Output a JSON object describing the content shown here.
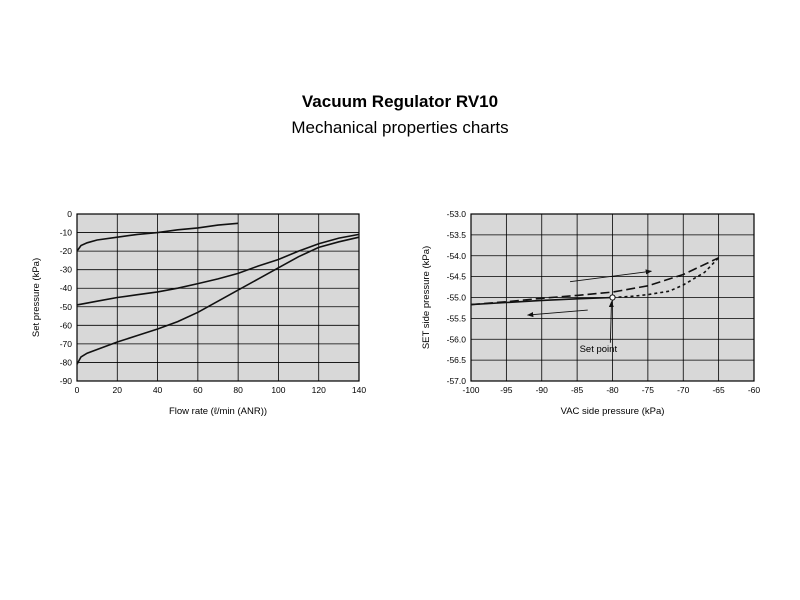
{
  "header": {
    "title": "Vacuum Regulator RV10",
    "subtitle": "Mechanical properties charts"
  },
  "chart_data": [
    {
      "type": "line",
      "xlabel": "Flow rate (ℓ/min (ANR))",
      "ylabel": "Set pressure (kPa)",
      "xlim": [
        0,
        140
      ],
      "ylim": [
        -90,
        0
      ],
      "xticks": [
        0,
        20,
        40,
        60,
        80,
        100,
        120,
        140
      ],
      "yticks": [
        0,
        -10,
        -20,
        -30,
        -40,
        -50,
        -60,
        -70,
        -80,
        -90
      ],
      "grid": true,
      "series": [
        {
          "style": "solid",
          "x": [
            0,
            2,
            5,
            10,
            20,
            30,
            40,
            50,
            60,
            70,
            80
          ],
          "y": [
            -20,
            -17,
            -15.5,
            -14,
            -12.5,
            -11,
            -10,
            -8.5,
            -7.5,
            -6,
            -5
          ]
        },
        {
          "style": "solid",
          "x": [
            0,
            5,
            10,
            20,
            30,
            40,
            50,
            60,
            70,
            80,
            90,
            100,
            110,
            120,
            130,
            140
          ],
          "y": [
            -49,
            -48,
            -47,
            -45,
            -43.5,
            -42,
            -40,
            -37.5,
            -35,
            -32,
            -28,
            -24.5,
            -20,
            -16,
            -13,
            -11
          ]
        },
        {
          "style": "solid",
          "x": [
            0,
            2,
            5,
            10,
            20,
            30,
            40,
            50,
            60,
            70,
            80,
            90,
            100,
            110,
            120,
            130,
            140
          ],
          "y": [
            -81,
            -77,
            -75,
            -73,
            -69,
            -65.5,
            -62,
            -58,
            -53,
            -47,
            -41,
            -35,
            -29,
            -23,
            -18,
            -15,
            -12.5
          ]
        }
      ]
    },
    {
      "type": "line",
      "xlabel": "VAC side pressure (kPa)",
      "ylabel": "SET side pressure (kPa)",
      "xlim": [
        -100,
        -60
      ],
      "ylim": [
        -57.0,
        -53.0
      ],
      "xticks": [
        -100,
        -95,
        -90,
        -85,
        -80,
        -75,
        -70,
        -65,
        -60
      ],
      "yticks": [
        "-53.0",
        "-53.5",
        "-54.0",
        "-54.5",
        "-55.0",
        "-55.5",
        "-56.0",
        "-56.5",
        "-57.0"
      ],
      "grid": true,
      "series": [
        {
          "style": "solid",
          "x": [
            -100,
            -95,
            -90,
            -85,
            -80
          ],
          "y": [
            -55.17,
            -55.12,
            -55.07,
            -55.03,
            -55.0
          ]
        },
        {
          "style": "long-dash",
          "x": [
            -100,
            -95,
            -90,
            -85,
            -80,
            -75,
            -70,
            -65
          ],
          "y": [
            -55.17,
            -55.1,
            -55.02,
            -54.95,
            -54.87,
            -54.72,
            -54.45,
            -54.05
          ]
        },
        {
          "style": "short-dash",
          "x": [
            -80,
            -77,
            -75,
            -72,
            -70,
            -67,
            -65
          ],
          "y": [
            -55.0,
            -54.97,
            -54.93,
            -54.85,
            -54.7,
            -54.4,
            -54.05
          ]
        }
      ],
      "set_point": {
        "x": -80,
        "y": -55.0
      },
      "annotations": [
        {
          "label": "Set point",
          "x": -82,
          "y": -56.3
        }
      ]
    }
  ]
}
